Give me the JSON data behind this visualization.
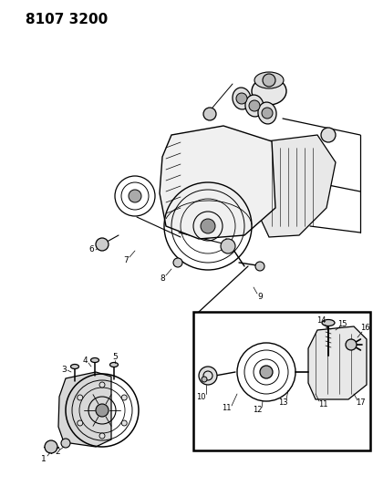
{
  "title": "8107 3200",
  "bg_color": "#ffffff",
  "title_fontsize": 11,
  "title_bold": true,
  "fig_width": 4.1,
  "fig_height": 5.33,
  "dpi": 100,
  "label_color": "#000000",
  "line_color": "#000000"
}
